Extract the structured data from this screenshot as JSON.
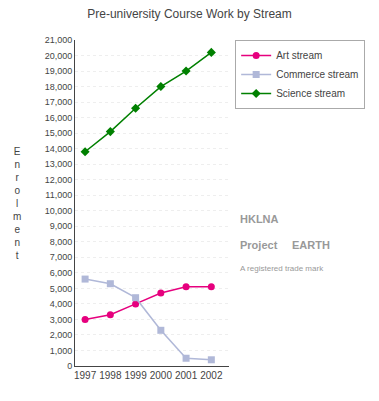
{
  "chart_data": {
    "type": "line",
    "title": "Pre-university Course Work by Stream",
    "ylabel": "Enrolment",
    "x": [
      1997,
      1998,
      1999,
      2000,
      2001,
      2002
    ],
    "series": [
      {
        "name": "Art stream",
        "color": "#e6007e",
        "marker": "circle",
        "values": [
          3000,
          3300,
          4000,
          4700,
          5100,
          5100
        ]
      },
      {
        "name": "Commerce stream",
        "color": "#b0b8d8",
        "marker": "square",
        "values": [
          5600,
          5300,
          4400,
          2300,
          500,
          400
        ]
      },
      {
        "name": "Science stream",
        "color": "#008000",
        "marker": "diamond",
        "values": [
          13800,
          15100,
          16600,
          18000,
          19000,
          20200
        ]
      }
    ],
    "xlim": [
      1996.6,
      2002.7
    ],
    "xticks": [
      1997,
      1998,
      1999,
      2000,
      2001,
      2002
    ],
    "ylim": [
      0,
      21000
    ],
    "yticks": [
      0,
      {
        "value": 1000,
        "label": "1,000"
      },
      {
        "value": 2000,
        "label": "2,000"
      },
      {
        "value": 3000,
        "label": "3,000"
      },
      {
        "value": 4000,
        "label": "4,000"
      },
      {
        "value": 5000,
        "label": "5,000"
      },
      {
        "value": 6000,
        "label": "6,000"
      },
      {
        "value": 7000,
        "label": "7,000"
      },
      {
        "value": 8000,
        "label": "8,000"
      },
      {
        "value": 9000,
        "label": "9,000"
      },
      {
        "value": 10000,
        "label": "10,000"
      },
      {
        "value": 11000,
        "label": "11,000"
      },
      {
        "value": 12000,
        "label": "12,000"
      },
      {
        "value": 13000,
        "label": "13,000"
      },
      {
        "value": 14000,
        "label": "14,000"
      },
      {
        "value": 15000,
        "label": "15,000"
      },
      {
        "value": 16000,
        "label": "16,000"
      },
      {
        "value": 17000,
        "label": "17,000"
      },
      {
        "value": 18000,
        "label": "18,000"
      },
      {
        "value": 19000,
        "label": "19,000"
      },
      {
        "value": 20000,
        "label": "20,000"
      },
      {
        "value": 21000,
        "label": "21,000"
      }
    ],
    "grid": true,
    "legend": "right",
    "annotations": [
      "HKLNA",
      "Project",
      "EARTH",
      "A registered trade mark"
    ]
  }
}
